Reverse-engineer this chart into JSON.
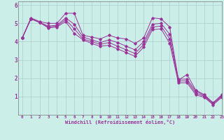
{
  "xlabel": "Windchill (Refroidissement éolien,°C)",
  "background_color": "#cceee8",
  "line_color": "#993399",
  "grid_color": "#aacccc",
  "xlim": [
    -0.5,
    23
  ],
  "ylim": [
    0,
    6.2
  ],
  "xticks": [
    0,
    1,
    2,
    3,
    4,
    5,
    6,
    7,
    8,
    9,
    10,
    11,
    12,
    13,
    14,
    15,
    16,
    17,
    18,
    19,
    20,
    21,
    22,
    23
  ],
  "yticks": [
    1,
    2,
    3,
    4,
    5,
    6
  ],
  "series": [
    [
      4.2,
      5.3,
      5.1,
      5.0,
      5.0,
      5.55,
      5.55,
      4.35,
      4.25,
      4.15,
      4.35,
      4.2,
      4.15,
      3.9,
      4.2,
      5.3,
      5.25,
      4.8,
      1.9,
      2.2,
      1.35,
      1.1,
      0.65,
      1.1
    ],
    [
      4.2,
      5.25,
      5.05,
      4.85,
      4.9,
      5.3,
      4.95,
      4.25,
      4.1,
      3.95,
      4.1,
      3.95,
      3.75,
      3.55,
      4.0,
      4.95,
      5.0,
      4.4,
      1.95,
      1.95,
      1.3,
      1.05,
      0.65,
      1.05
    ],
    [
      4.2,
      5.25,
      5.05,
      4.8,
      4.85,
      5.2,
      4.7,
      4.15,
      4.0,
      3.85,
      3.95,
      3.75,
      3.55,
      3.35,
      3.85,
      4.8,
      4.85,
      4.15,
      1.85,
      1.85,
      1.2,
      1.0,
      0.6,
      1.0
    ],
    [
      4.2,
      5.25,
      5.05,
      4.75,
      4.8,
      5.1,
      4.45,
      4.1,
      3.9,
      3.75,
      3.8,
      3.6,
      3.4,
      3.2,
      3.7,
      4.65,
      4.7,
      3.9,
      1.75,
      1.75,
      1.1,
      0.95,
      0.55,
      0.95
    ]
  ]
}
